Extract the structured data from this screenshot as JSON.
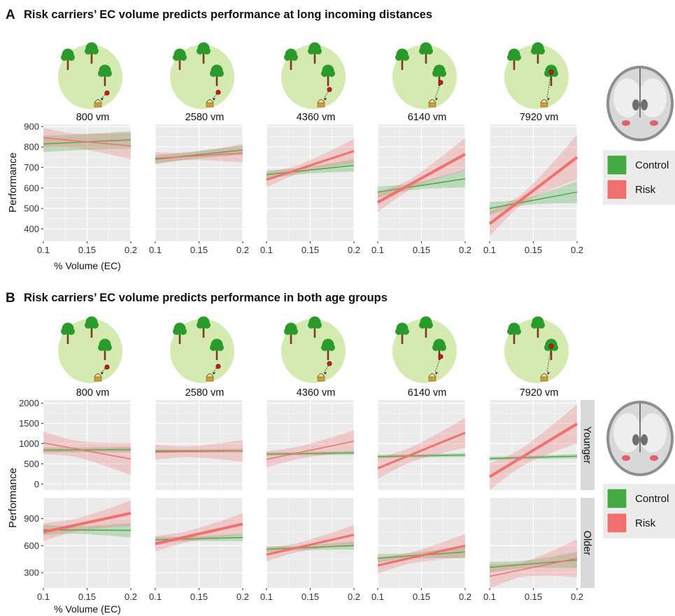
{
  "panels": {
    "A": {
      "letter": "A",
      "title": "Risk carriers’ EC volume predicts performance at long incoming distances"
    },
    "B": {
      "letter": "B",
      "title": "Risk carriers’ EC volume predicts performance in both age groups"
    }
  },
  "legend": {
    "items": [
      {
        "label": "Control",
        "color": "#44aa44"
      },
      {
        "label": "Risk",
        "color": "#f07070"
      }
    ]
  },
  "colors": {
    "control": "#44aa44",
    "risk": "#f07070",
    "panel_bg": "#ebebeb",
    "grid": "#ffffff",
    "strip_bg": "#d9d9d9",
    "arena": "#d5eab0",
    "tree_top": "#2a9a2a",
    "tree_trunk": "#7a3b1a"
  },
  "icons": [
    "tree-icon",
    "apple-icon",
    "basket-icon",
    "brain-scan-icon"
  ],
  "chart_data": [
    {
      "type": "line",
      "panel": "A",
      "title": "Risk carriers’ EC volume predicts performance at long incoming distances",
      "facets": [
        "800 vm",
        "2580 vm",
        "4360 vm",
        "6140 vm",
        "7920 vm"
      ],
      "xlabel": "% Volume (EC)",
      "ylabel": "Performance",
      "xlim": [
        0.1,
        0.2
      ],
      "ylim": [
        340,
        910
      ],
      "xticks": [
        "0.1",
        "0.15",
        "0.2"
      ],
      "yticks": [
        "400",
        "500",
        "600",
        "700",
        "800",
        "900"
      ],
      "ytick_values": [
        400,
        500,
        600,
        700,
        800,
        900
      ],
      "grid": true,
      "legend_position": "right",
      "series": [
        {
          "name": "Control",
          "color": "#44aa44",
          "x": [
            0.1,
            0.2
          ],
          "facet_lines": [
            [
              815,
              835
            ],
            [
              740,
              785
            ],
            [
              665,
              710
            ],
            [
              580,
              645
            ],
            [
              500,
              580
            ]
          ],
          "facet_ci": [
            [
              38,
              42
            ],
            [
              18,
              22
            ],
            [
              15,
              30
            ],
            [
              15,
              45
            ],
            [
              15,
              55
            ]
          ],
          "facet_widths": [
            1.5,
            1.5,
            1.5,
            1.5,
            1.5
          ]
        },
        {
          "name": "Risk",
          "color": "#f07070",
          "x": [
            0.1,
            0.2
          ],
          "facet_lines": [
            [
              845,
              805
            ],
            [
              745,
              770
            ],
            [
              640,
              780
            ],
            [
              530,
              765
            ],
            [
              425,
              750
            ]
          ],
          "facet_ci": [
            [
              35,
              65
            ],
            [
              18,
              45
            ],
            [
              20,
              60
            ],
            [
              25,
              80
            ],
            [
              25,
              110
            ]
          ],
          "facet_widths": [
            1.5,
            1.5,
            3,
            4,
            4
          ]
        }
      ]
    },
    {
      "type": "line",
      "panel": "B",
      "title": "Risk carriers’ EC volume predicts performance in both age groups",
      "facets": [
        "800 vm",
        "2580 vm",
        "4360 vm",
        "6140 vm",
        "7920 vm"
      ],
      "rows": [
        "Younger",
        "Older"
      ],
      "xlabel": "% Volume (EC)",
      "ylabel": "Performance",
      "xlim": [
        0.1,
        0.2
      ],
      "xticks": [
        "0.1",
        "0.15",
        "0.2"
      ],
      "grid": true,
      "legend_position": "right",
      "row_scales": [
        {
          "row": "Younger",
          "ylim": [
            -150,
            2080
          ],
          "yticks": [
            "0",
            "500",
            "1000",
            "1500",
            "2000"
          ],
          "ytick_values": [
            0,
            500,
            1000,
            1500,
            2000
          ]
        },
        {
          "row": "Older",
          "ylim": [
            130,
            1130
          ],
          "yticks": [
            "300",
            "600",
            "900"
          ],
          "ytick_values": [
            300,
            600,
            900
          ]
        }
      ],
      "series": [
        {
          "name": "Control",
          "color": "#44aa44",
          "x": [
            0.1,
            0.2
          ],
          "row_facet_lines": [
            [
              [
                840,
                850
              ],
              [
                815,
                825
              ],
              [
                740,
                770
              ],
              [
                680,
                720
              ],
              [
                630,
                690
              ]
            ],
            [
              [
                775,
                770
              ],
              [
                665,
                690
              ],
              [
                560,
                600
              ],
              [
                460,
                530
              ],
              [
                360,
                440
              ]
            ]
          ],
          "row_facet_ci": [
            [
              [
                60,
                70
              ],
              [
                40,
                50
              ],
              [
                40,
                50
              ],
              [
                40,
                55
              ],
              [
                40,
                60
              ]
            ],
            [
              [
                40,
                80
              ],
              [
                25,
                40
              ],
              [
                25,
                45
              ],
              [
                30,
                70
              ],
              [
                40,
                90
              ]
            ]
          ],
          "row_facet_widths": [
            [
              1.5,
              1.5,
              1.5,
              1.5,
              1.5
            ],
            [
              1.5,
              1.5,
              1.5,
              1.5,
              1.5
            ]
          ]
        },
        {
          "name": "Risk",
          "color": "#f07070",
          "x": [
            0.1,
            0.2
          ],
          "row_facet_lines": [
            [
              [
                1020,
                620
              ],
              [
                790,
                820
              ],
              [
                610,
                1060
              ],
              [
                390,
                1270
              ],
              [
                180,
                1490
              ]
            ],
            [
              [
                750,
                960
              ],
              [
                620,
                840
              ],
              [
                500,
                720
              ],
              [
                380,
                600
              ],
              [
                260,
                460
              ]
            ]
          ],
          "row_facet_ci": [
            [
              [
                200,
                400
              ],
              [
                130,
                270
              ],
              [
                150,
                270
              ],
              [
                180,
                370
              ],
              [
                220,
                480
              ]
            ],
            [
              [
                70,
                140
              ],
              [
                60,
                120
              ],
              [
                50,
                110
              ],
              [
                60,
                130
              ],
              [
                80,
                210
              ]
            ]
          ],
          "row_facet_widths": [
            [
              1.5,
              1.5,
              1.5,
              3,
              4
            ],
            [
              4,
              4,
              3,
              3,
              1.5
            ]
          ]
        }
      ]
    }
  ]
}
